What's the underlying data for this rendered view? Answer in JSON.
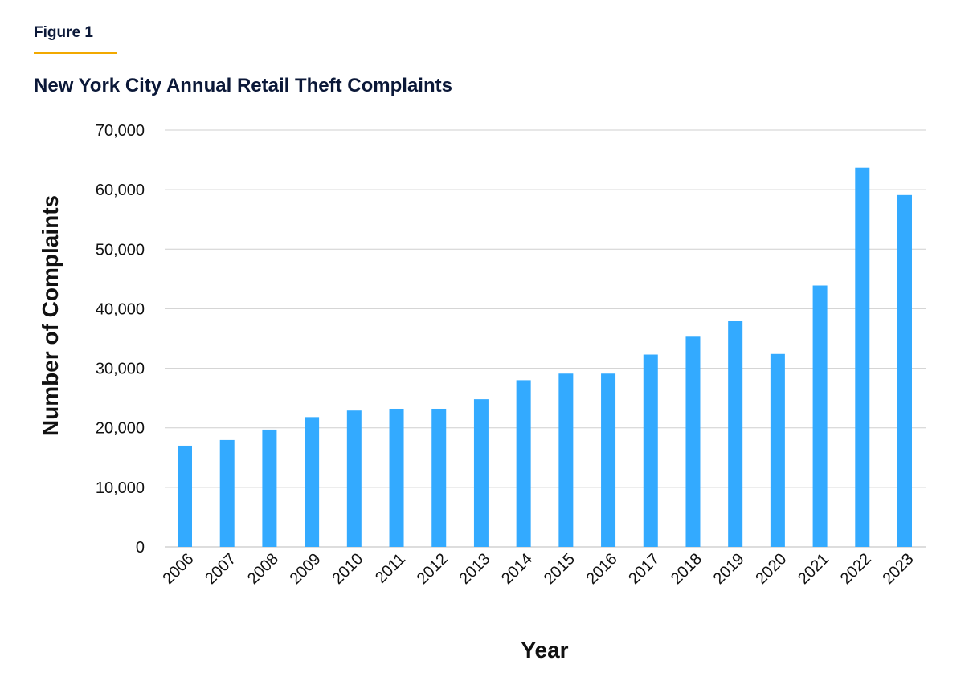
{
  "figure_label": "Figure 1",
  "chart_data": {
    "type": "bar",
    "title": "New York City Annual Retail Theft Complaints",
    "xlabel": "Year",
    "ylabel": "Number of Complaints",
    "ylim": [
      0,
      70000
    ],
    "yticks": [
      "0",
      "10,000",
      "20,000",
      "30,000",
      "40,000",
      "50,000",
      "60,000",
      "70,000"
    ],
    "grid": true,
    "categories": [
      "2006",
      "2007",
      "2008",
      "2009",
      "2010",
      "2011",
      "2012",
      "2013",
      "2014",
      "2015",
      "2016",
      "2017",
      "2018",
      "2019",
      "2020",
      "2021",
      "2022",
      "2023"
    ],
    "values": [
      17000,
      17950,
      19700,
      21800,
      22900,
      23200,
      23200,
      24800,
      28000,
      29100,
      29100,
      32300,
      35300,
      37900,
      32400,
      43900,
      63700,
      59100
    ],
    "bar_color": "#33aaff"
  }
}
